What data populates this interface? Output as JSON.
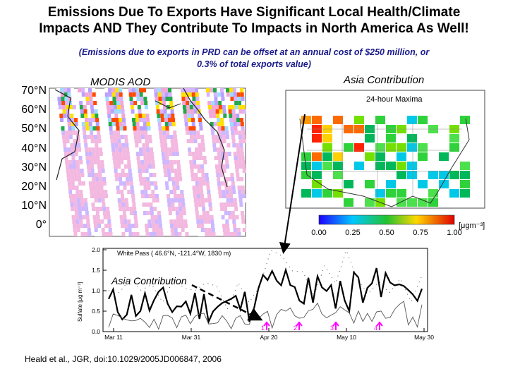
{
  "title": {
    "line1": "Emissions Due To Exports Have Significant Local Health/Climate",
    "line2": "Impacts AND They  Contribute To Impacts in North America As Well!"
  },
  "subtitle": {
    "line1": "(Emissions due to exports in PRD can be offset at an annual cost of $250 million, or",
    "line2": "0.3% of total exports value)"
  },
  "modis": {
    "label": "MODIS AOD",
    "latitudes": [
      "70°N",
      "60°N",
      "50°N",
      "40°N",
      "30°N",
      "20°N",
      "10°N",
      "0°"
    ]
  },
  "asia_map": {
    "label": "Asia Contribution",
    "panel_title": "24-hour Maxima",
    "colorbar_ticks": [
      "0.00",
      "0.25",
      "0.50",
      "0.75",
      "1.00"
    ],
    "colorbar_unit": "[μgm⁻³]"
  },
  "timeseries": {
    "header": "White Pass ( 46.6°N, -121.4°W, 1830 m)",
    "ylabel": "Sulfate [μg m⁻³]",
    "yticks": [
      "2.0",
      "1.5",
      "1.0",
      "0.5",
      "0.0"
    ],
    "xticks": [
      "Mar 11",
      "Mar 31",
      "Apr 20",
      "May 10",
      "May 30"
    ],
    "annotation": "Asia Contribution",
    "event_markers": [
      "1",
      "2",
      "3",
      "4"
    ]
  },
  "citation": "Heald et al., JGR, doi:10.1029/2005JD006847, 2006"
}
